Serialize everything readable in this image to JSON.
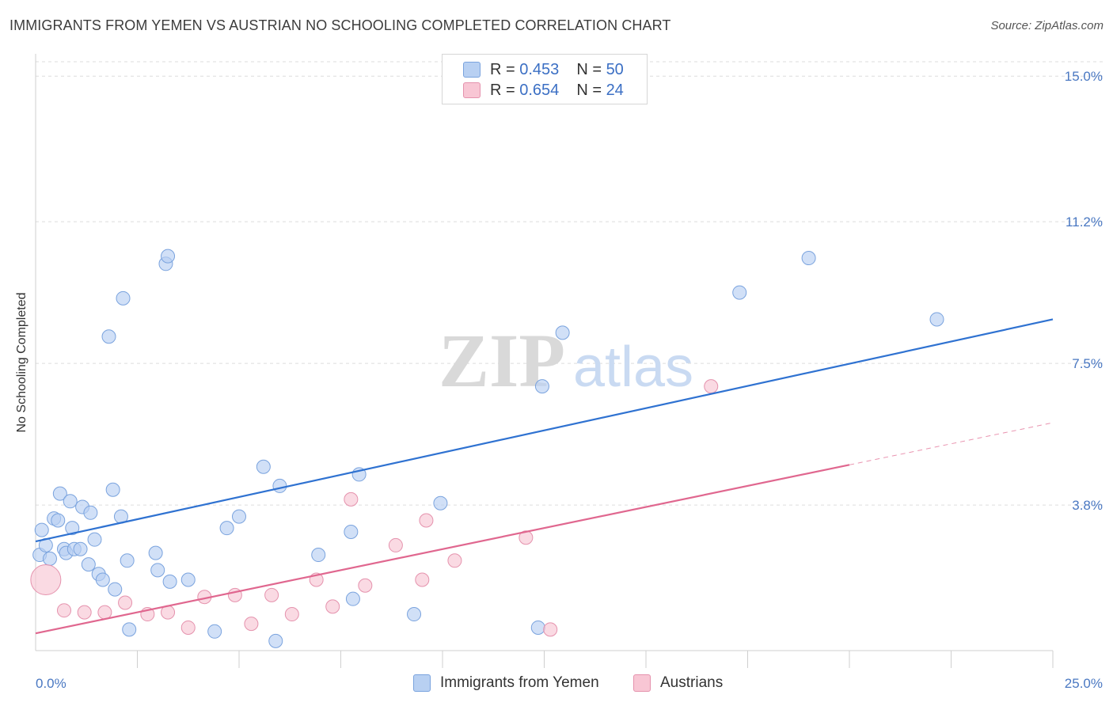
{
  "header": {
    "title": "IMMIGRANTS FROM YEMEN VS AUSTRIAN NO SCHOOLING COMPLETED CORRELATION CHART",
    "source": "Source: ZipAtlas.com"
  },
  "watermark": {
    "zip": "ZIP",
    "atlas": "atlas"
  },
  "colors": {
    "blue_fill": "#b8d0f2",
    "blue_stroke": "#7aa3de",
    "blue_line": "#2f72d1",
    "pink_fill": "#f8c6d4",
    "pink_stroke": "#e592ad",
    "pink_line": "#e0678f",
    "tick_text": "#4a78c2",
    "grid": "#dddddd"
  },
  "legend_top": {
    "rows": [
      {
        "r_label": "R = ",
        "r_value": "0.453",
        "n_label": "N = ",
        "n_value": "50"
      },
      {
        "r_label": "R = ",
        "r_value": "0.654",
        "n_label": "N = ",
        "n_value": "24"
      }
    ]
  },
  "chart_data": {
    "type": "scatter",
    "title": "IMMIGRANTS FROM YEMEN VS AUSTRIAN NO SCHOOLING COMPLETED CORRELATION CHART",
    "xlabel": "",
    "ylabel": "No Schooling Completed",
    "xlim": [
      0,
      25
    ],
    "ylim": [
      0,
      15.5
    ],
    "x_tick_labels": [
      {
        "value": 0,
        "label": "0.0%"
      },
      {
        "value": 25,
        "label": "25.0%"
      }
    ],
    "y_tick_labels": [
      {
        "value": 3.8,
        "label": "3.8%"
      },
      {
        "value": 7.5,
        "label": "7.5%"
      },
      {
        "value": 11.2,
        "label": "11.2%"
      },
      {
        "value": 15.0,
        "label": "15.0%"
      }
    ],
    "x_minor_ticks": [
      2.5,
      5,
      7.5,
      10,
      12.5,
      15,
      17.5,
      20,
      22.5,
      25
    ],
    "grid": true,
    "legend_position": "bottom-center",
    "series": [
      {
        "name": "Immigrants from Yemen",
        "color": "#b8d0f2",
        "trend": {
          "x": [
            0,
            25
          ],
          "y": [
            2.85,
            8.65
          ]
        },
        "points": [
          [
            0.1,
            2.5
          ],
          [
            0.15,
            3.15
          ],
          [
            0.25,
            2.75
          ],
          [
            0.35,
            2.4
          ],
          [
            0.45,
            3.45
          ],
          [
            0.55,
            3.4
          ],
          [
            0.6,
            4.1
          ],
          [
            0.7,
            2.65
          ],
          [
            0.75,
            2.55
          ],
          [
            0.85,
            3.9
          ],
          [
            0.9,
            3.2
          ],
          [
            0.95,
            2.65
          ],
          [
            1.1,
            2.65
          ],
          [
            1.15,
            3.75
          ],
          [
            1.3,
            2.25
          ],
          [
            1.35,
            3.6
          ],
          [
            1.45,
            2.9
          ],
          [
            1.55,
            2.0
          ],
          [
            1.65,
            1.85
          ],
          [
            1.8,
            8.2
          ],
          [
            1.9,
            4.2
          ],
          [
            1.95,
            1.6
          ],
          [
            2.1,
            3.5
          ],
          [
            2.15,
            9.2
          ],
          [
            2.25,
            2.35
          ],
          [
            2.3,
            0.55
          ],
          [
            2.95,
            2.55
          ],
          [
            3.0,
            2.1
          ],
          [
            3.2,
            10.1
          ],
          [
            3.25,
            10.3
          ],
          [
            3.3,
            1.8
          ],
          [
            3.75,
            1.85
          ],
          [
            4.4,
            0.5
          ],
          [
            4.7,
            3.2
          ],
          [
            5.0,
            3.5
          ],
          [
            5.6,
            4.8
          ],
          [
            5.9,
            0.25
          ],
          [
            6.0,
            4.3
          ],
          [
            6.95,
            2.5
          ],
          [
            7.75,
            3.1
          ],
          [
            7.8,
            1.35
          ],
          [
            7.95,
            4.6
          ],
          [
            9.3,
            0.95
          ],
          [
            9.95,
            3.85
          ],
          [
            12.35,
            0.6
          ],
          [
            12.45,
            6.9
          ],
          [
            12.95,
            8.3
          ],
          [
            17.3,
            9.35
          ],
          [
            19.0,
            10.25
          ],
          [
            22.15,
            8.65
          ]
        ]
      },
      {
        "name": "Austrians",
        "color": "#f8c6d4",
        "trend": {
          "x": [
            0,
            20
          ],
          "y": [
            0.45,
            4.85
          ]
        },
        "trend_dashed_extension": {
          "x": [
            20,
            25
          ],
          "y": [
            4.85,
            5.95
          ]
        },
        "points": [
          [
            0.25,
            1.85
          ],
          [
            0.7,
            1.05
          ],
          [
            1.2,
            1.0
          ],
          [
            1.7,
            1.0
          ],
          [
            2.2,
            1.25
          ],
          [
            2.75,
            0.95
          ],
          [
            3.25,
            1.0
          ],
          [
            3.75,
            0.6
          ],
          [
            4.15,
            1.4
          ],
          [
            4.9,
            1.45
          ],
          [
            5.3,
            0.7
          ],
          [
            5.8,
            1.45
          ],
          [
            6.3,
            0.95
          ],
          [
            6.9,
            1.85
          ],
          [
            7.3,
            1.15
          ],
          [
            7.75,
            3.95
          ],
          [
            8.1,
            1.7
          ],
          [
            8.85,
            2.75
          ],
          [
            9.5,
            1.85
          ],
          [
            9.6,
            3.4
          ],
          [
            10.3,
            2.35
          ],
          [
            12.05,
            2.95
          ],
          [
            12.65,
            0.55
          ],
          [
            16.6,
            6.9
          ]
        ]
      }
    ]
  }
}
